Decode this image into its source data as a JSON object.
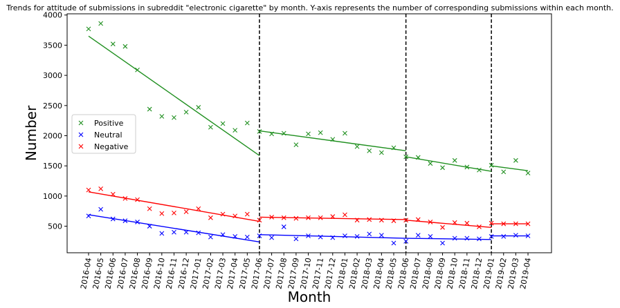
{
  "chart_data": {
    "type": "scatter",
    "title": "Trends for attitude of submissions in subreddit \"electronic cigarette\" by month. Y-axis represents the number of corresponding submissions within each month.",
    "xlabel": "Month",
    "ylabel": "Number",
    "ylim": [
      60,
      4020
    ],
    "yticks": [
      500,
      1000,
      1500,
      2000,
      2500,
      3000,
      3500,
      4000
    ],
    "categories": [
      "2016-04",
      "2016-05",
      "2016-06",
      "2016-07",
      "2016-08",
      "2016-09",
      "2016-10",
      "2016-11",
      "2016-12",
      "2017-01",
      "2017-02",
      "2017-03",
      "2017-04",
      "2017-05",
      "2017-06",
      "2017-07",
      "2017-08",
      "2017-09",
      "2017-10",
      "2017-11",
      "2017-12",
      "2018-01",
      "2018-02",
      "2018-03",
      "2018-04",
      "2018-05",
      "2018-06",
      "2018-07",
      "2018-08",
      "2018-09",
      "2018-10",
      "2018-11",
      "2018-12",
      "2019-01",
      "2019-02",
      "2019-03",
      "2019-04"
    ],
    "series": [
      {
        "name": "Positive",
        "color": "#1f8f1f",
        "marker": "x",
        "values": [
          3770,
          3860,
          3520,
          3480,
          3090,
          2440,
          2320,
          2300,
          2390,
          2470,
          2140,
          2200,
          2090,
          2210,
          2070,
          2030,
          2040,
          1850,
          2030,
          2050,
          1940,
          2040,
          1820,
          1750,
          1720,
          1800,
          1650,
          1640,
          1540,
          1470,
          1590,
          1480,
          1430,
          1510,
          1400,
          1590,
          1380
        ],
        "trend_segments": [
          {
            "from": "2016-04",
            "to": "2017-06",
            "start": 3650,
            "end": 1670
          },
          {
            "from": "2017-06",
            "to": "2018-06",
            "start": 2080,
            "end": 1750
          },
          {
            "from": "2018-06",
            "to": "2019-01",
            "start": 1650,
            "end": 1410
          },
          {
            "from": "2019-01",
            "to": "2019-04",
            "start": 1500,
            "end": 1420
          }
        ]
      },
      {
        "name": "Neutral",
        "color": "#0000ff",
        "marker": "x",
        "values": [
          670,
          780,
          620,
          590,
          570,
          500,
          380,
          400,
          400,
          390,
          320,
          360,
          330,
          320,
          340,
          310,
          490,
          290,
          340,
          320,
          310,
          340,
          330,
          370,
          350,
          220,
          250,
          350,
          330,
          220,
          300,
          300,
          290,
          330,
          330,
          350,
          340
        ],
        "trend_segments": [
          {
            "from": "2016-04",
            "to": "2017-06",
            "start": 690,
            "end": 240
          },
          {
            "from": "2017-06",
            "to": "2018-06",
            "start": 360,
            "end": 300
          },
          {
            "from": "2018-06",
            "to": "2019-01",
            "start": 300,
            "end": 280
          },
          {
            "from": "2019-01",
            "to": "2019-04",
            "start": 340,
            "end": 340
          }
        ]
      },
      {
        "name": "Negative",
        "color": "#ff0000",
        "marker": "x",
        "values": [
          1100,
          1120,
          1030,
          960,
          940,
          790,
          710,
          720,
          740,
          790,
          640,
          700,
          670,
          700,
          600,
          650,
          640,
          630,
          640,
          640,
          660,
          690,
          600,
          610,
          600,
          590,
          600,
          610,
          570,
          480,
          560,
          550,
          490,
          550,
          540,
          540,
          540
        ],
        "trend_segments": [
          {
            "from": "2016-04",
            "to": "2017-06",
            "start": 1070,
            "end": 580
          },
          {
            "from": "2017-06",
            "to": "2018-06",
            "start": 650,
            "end": 610
          },
          {
            "from": "2018-06",
            "to": "2019-01",
            "start": 600,
            "end": 480
          },
          {
            "from": "2019-01",
            "to": "2019-04",
            "start": 540,
            "end": 540
          }
        ]
      }
    ],
    "vlines": [
      "2017-06",
      "2018-06",
      "2019-01"
    ],
    "grid": false,
    "legend_position": "left-middle"
  }
}
